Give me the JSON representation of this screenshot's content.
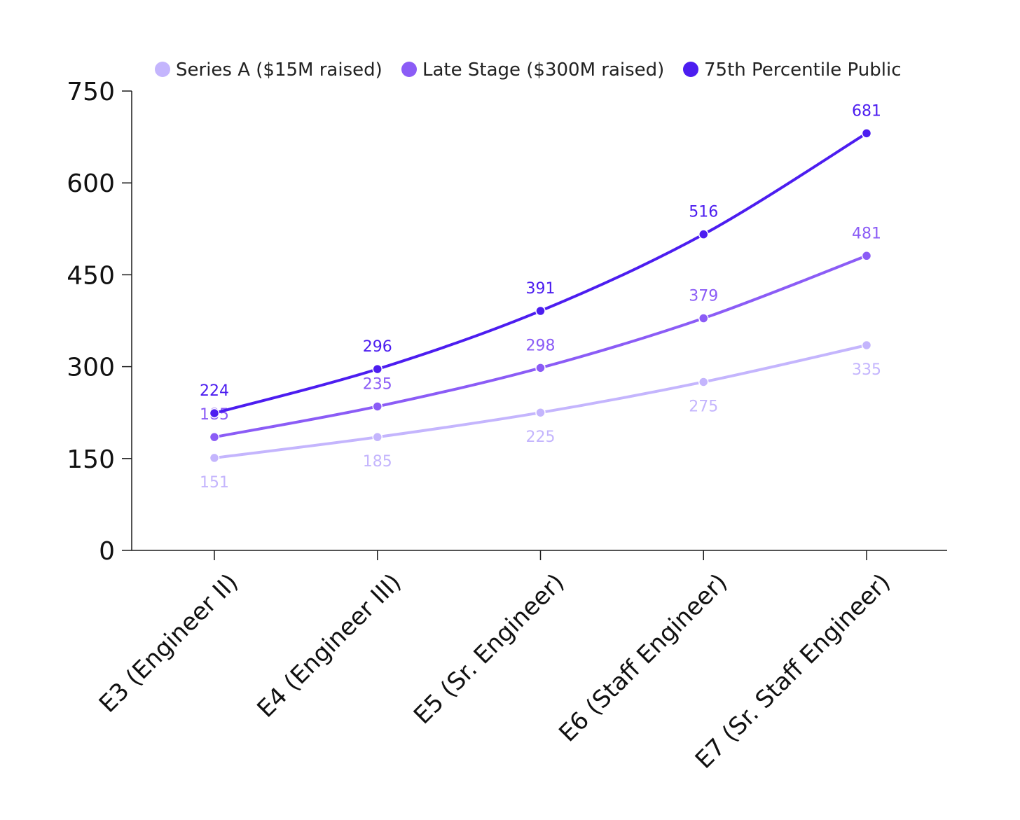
{
  "chart_data": {
    "type": "line",
    "categories": [
      "E3 (Engineer II)",
      "E4 (Engineer III)",
      "E5 (Sr. Engineer)",
      "E6 (Staff Engineer)",
      "E7 (Sr. Staff Engineer)"
    ],
    "series": [
      {
        "name": "Series A ($15M raised)",
        "values": [
          151,
          185,
          225,
          275,
          335
        ],
        "color": "#c4b5fd",
        "label_position": "below"
      },
      {
        "name": "Late Stage ($300M raised)",
        "values": [
          185,
          235,
          298,
          379,
          481
        ],
        "color": "#8b5cf6",
        "label_position": "above"
      },
      {
        "name": "75th Percentile Public",
        "values": [
          224,
          296,
          391,
          516,
          681
        ],
        "color": "#4c1df0",
        "label_position": "above"
      }
    ],
    "title": "",
    "xlabel": "",
    "ylabel": "",
    "ylim": [
      0,
      750
    ],
    "yticks": [
      0,
      150,
      300,
      450,
      600,
      750
    ],
    "grid": false,
    "legend_position": "top-center"
  }
}
